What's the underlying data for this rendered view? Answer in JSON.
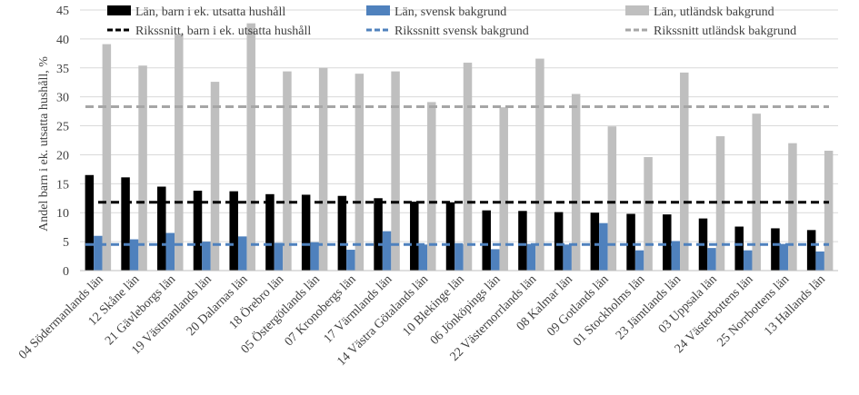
{
  "chart_data": {
    "type": "bar",
    "title": "",
    "xlabel": "",
    "ylabel": "Andel barn i ek. utsatta hushåll, %",
    "ylim": [
      0,
      45
    ],
    "yticks": [
      0,
      5,
      10,
      15,
      20,
      25,
      30,
      35,
      40,
      45
    ],
    "grid": true,
    "legend_position": "top",
    "categories": [
      "04 Södermanlands län",
      "12 Skåne län",
      "21 Gävleborgs län",
      "19 Västmanlands län",
      "20 Dalarnas län",
      "18 Örebro län",
      "05 Östergötlands län",
      "07 Kronobergs län",
      "17 Värmlands län",
      "14 Västra Götalands län",
      "10 Blekinge län",
      "06 Jönköpings län",
      "22 Västernorrlands län",
      "08 Kalmar län",
      "09 Gotlands län",
      "01 Stockholms län",
      "23 Jämtlands län",
      "03 Uppsala län",
      "24 Västerbottens län",
      "25 Norrbottens län",
      "13 Hallands län"
    ],
    "series": [
      {
        "name": "Län, barn i ek. utsatta hushåll",
        "color": "#000000",
        "values": [
          16.5,
          16.1,
          14.5,
          13.8,
          13.7,
          13.2,
          13.1,
          12.9,
          12.5,
          11.9,
          11.8,
          10.4,
          10.3,
          10.1,
          10.0,
          9.8,
          9.7,
          9.0,
          7.6,
          7.3,
          7.0
        ]
      },
      {
        "name": "Län, svensk bakgrund",
        "color": "#4F81BD",
        "values": [
          6.0,
          5.4,
          6.5,
          5.0,
          5.9,
          4.8,
          4.9,
          3.6,
          6.8,
          4.5,
          4.6,
          3.7,
          4.6,
          4.5,
          8.2,
          3.5,
          5.1,
          3.9,
          3.5,
          4.6,
          3.3
        ]
      },
      {
        "name": "Län, utländsk bakgrund",
        "color": "#BFBFBF",
        "values": [
          39.1,
          35.4,
          40.8,
          32.6,
          42.7,
          34.4,
          35.0,
          34.0,
          34.4,
          29.1,
          35.9,
          28.2,
          36.6,
          30.5,
          24.9,
          19.6,
          34.2,
          23.2,
          27.1,
          22.0,
          20.7
        ]
      }
    ],
    "reference_lines": [
      {
        "name": "Rikssnitt, barn i ek. utsatta hushåll",
        "value": 11.8,
        "color": "#000000"
      },
      {
        "name": "Rikssnitt svensk bakgrund",
        "value": 4.5,
        "color": "#4F81BD"
      },
      {
        "name": "Rikssnitt utländsk bakgrund",
        "value": 28.3,
        "color": "#A6A6A6"
      }
    ]
  }
}
